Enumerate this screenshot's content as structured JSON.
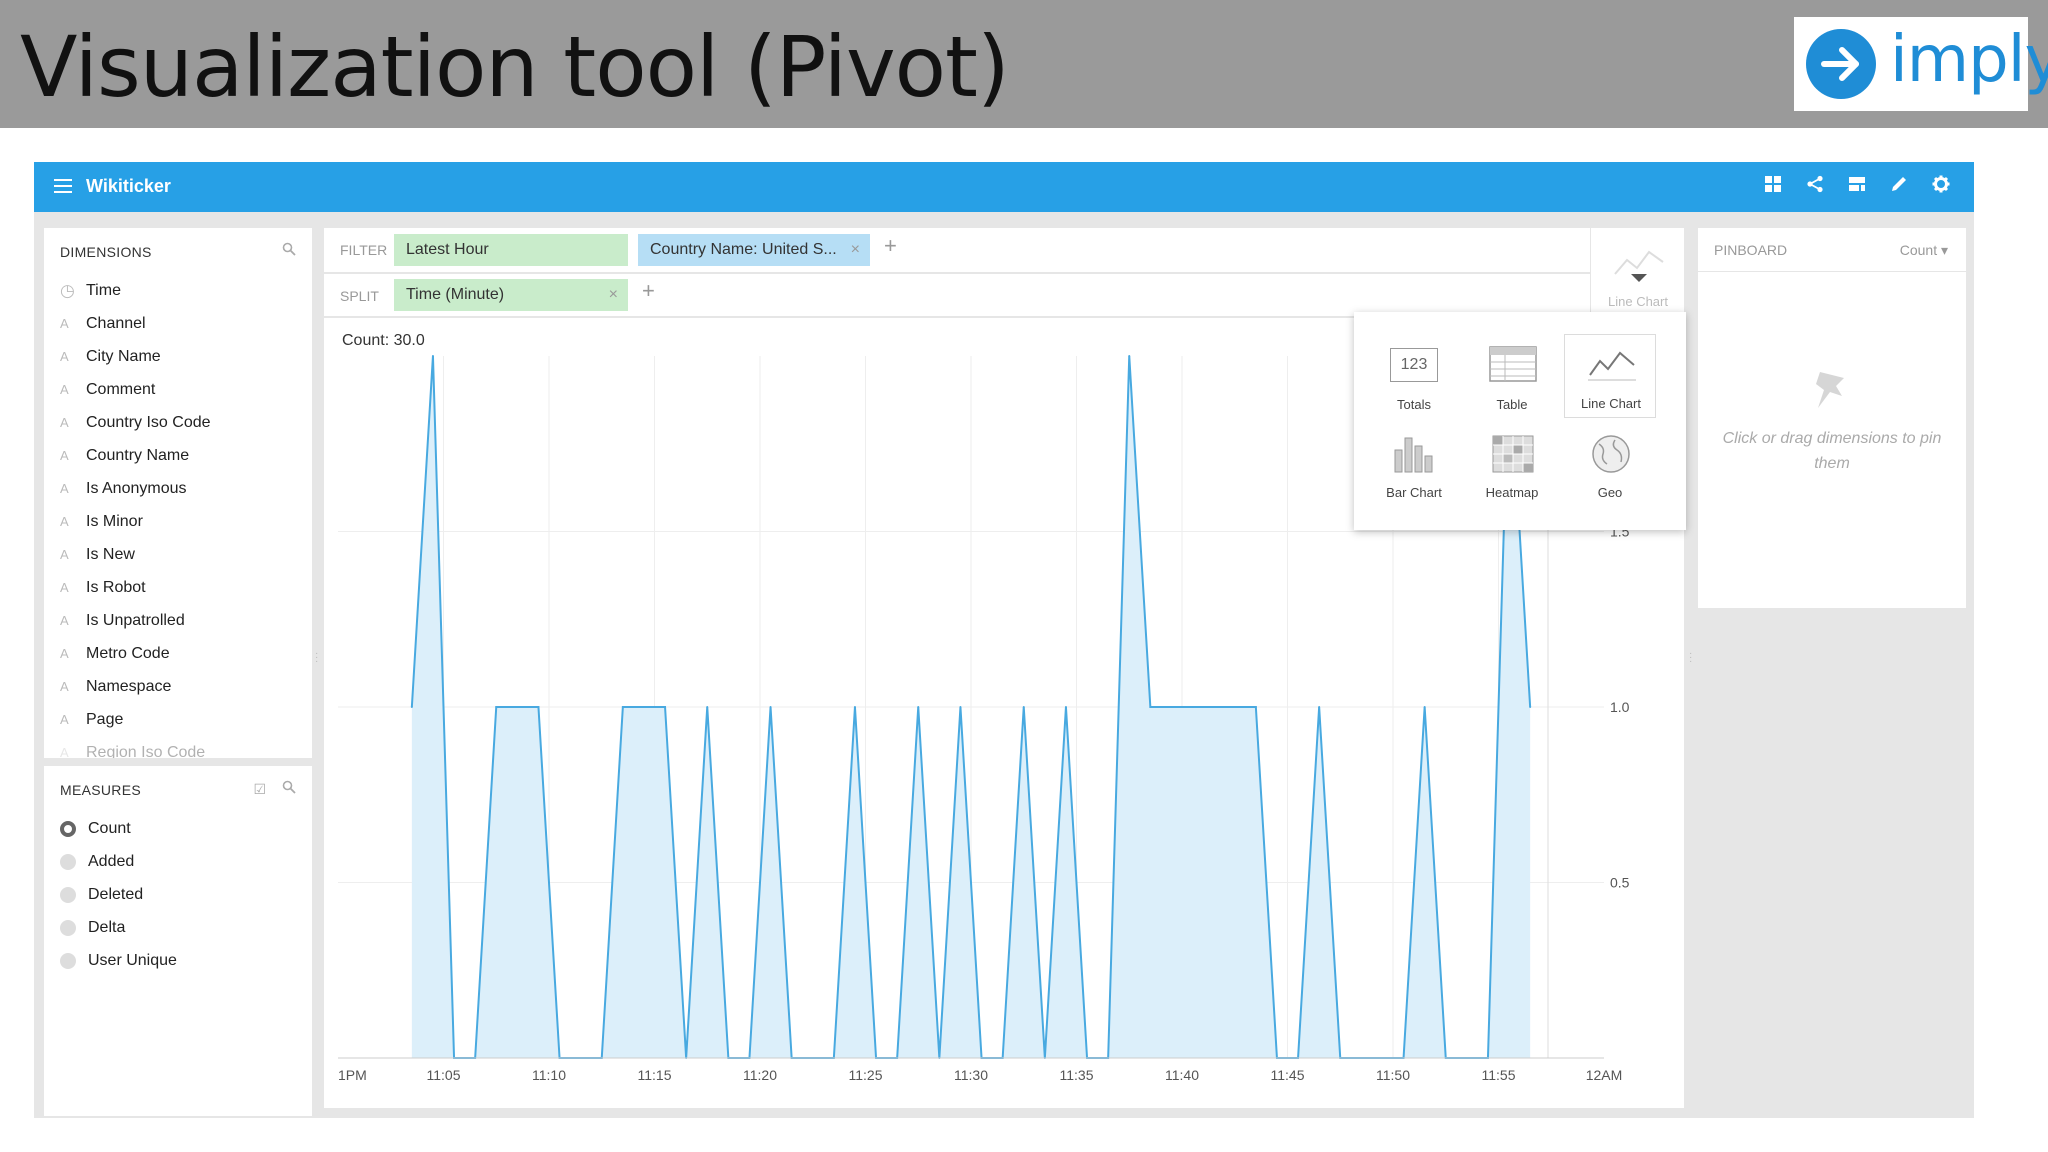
{
  "slide": {
    "title": "Visualization tool (Pivot)",
    "logo_text": "imply"
  },
  "app": {
    "title": "Wikiticker",
    "top_icons": [
      "grid-icon",
      "share-icon",
      "layout-icon",
      "edit-icon",
      "gear-icon"
    ]
  },
  "dimensions": {
    "title": "DIMENSIONS",
    "items": [
      "Time",
      "Channel",
      "City Name",
      "Comment",
      "Country Iso Code",
      "Country Name",
      "Is Anonymous",
      "Is Minor",
      "Is New",
      "Is Robot",
      "Is Unpatrolled",
      "Metro Code",
      "Namespace",
      "Page",
      "Region Iso Code"
    ]
  },
  "measures": {
    "title": "MEASURES",
    "items": [
      "Count",
      "Added",
      "Deleted",
      "Delta",
      "User Unique"
    ],
    "selected": "Count"
  },
  "filter": {
    "label": "FILTER",
    "pills": [
      "Latest Hour",
      "Country Name:  United S..."
    ]
  },
  "split": {
    "label": "SPLIT",
    "pills": [
      "Time (Minute)"
    ]
  },
  "viz_selector": {
    "current": "Line Chart"
  },
  "viz_menu": {
    "options": [
      {
        "label": "Totals",
        "icon": "totals-icon",
        "glyph": "123"
      },
      {
        "label": "Table",
        "icon": "table-icon"
      },
      {
        "label": "Line Chart",
        "icon": "line-chart-icon"
      },
      {
        "label": "Bar Chart",
        "icon": "bar-chart-icon"
      },
      {
        "label": "Heatmap",
        "icon": "heatmap-icon"
      },
      {
        "label": "Geo",
        "icon": "globe-icon"
      }
    ],
    "selected": "Line Chart"
  },
  "pinboard": {
    "title": "PINBOARD",
    "measure": "Count",
    "hint": "Click or drag dimensions to pin them"
  },
  "chart_data": {
    "type": "area",
    "title": "Count: 30.0",
    "x_tick_labels": [
      "1PM",
      "11:05",
      "11:10",
      "11:15",
      "11:20",
      "11:25",
      "11:30",
      "11:35",
      "11:40",
      "11:45",
      "11:50",
      "11:55",
      "12AM"
    ],
    "y_tick_labels": [
      "0.5",
      "1.0",
      "1.5"
    ],
    "ylim": [
      0,
      2
    ],
    "x": [
      3.5,
      4.5,
      5.5,
      6.5,
      7.5,
      8.5,
      9.5,
      10.5,
      11.5,
      12.5,
      13.5,
      14.5,
      15.5,
      16.5,
      17.5,
      18.5,
      19.5,
      20.5,
      21.5,
      22.5,
      23.5,
      24.5,
      25.5,
      26.5,
      27.5,
      28.5,
      29.5,
      30.5,
      31.5,
      32.5,
      33.5,
      34.5,
      35.5,
      36.5,
      37.5,
      38.5,
      39.5,
      40.5,
      41.5,
      42.5,
      43.5,
      44.5,
      45.5,
      46.5,
      47.5,
      48.5,
      49.5,
      50.5,
      51.5,
      52.5,
      53.5,
      54.5,
      55.5,
      56.5
    ],
    "values": [
      1,
      2,
      0,
      0,
      1,
      1,
      1,
      0,
      0,
      0,
      1,
      1,
      1,
      0,
      1,
      0,
      0,
      1,
      0,
      0,
      0,
      1,
      0,
      0,
      1,
      0,
      1,
      0,
      0,
      1,
      0,
      1,
      0,
      0,
      2,
      1,
      1,
      1,
      1,
      1,
      1,
      0,
      0,
      1,
      0,
      0,
      0,
      0,
      1,
      0,
      0,
      0,
      2,
      1
    ],
    "x_range": [
      0,
      60
    ],
    "series_color": "#48a9e0",
    "fill_color": "#dceffa",
    "grid": true
  }
}
